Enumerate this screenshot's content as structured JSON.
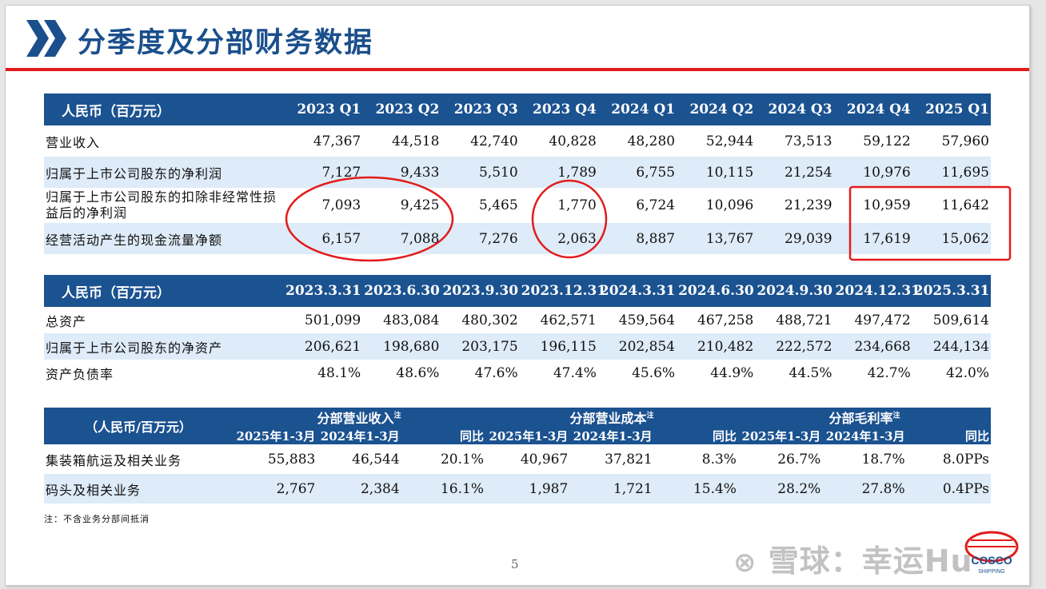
{
  "title": "分季度及分部财务数据",
  "table1": {
    "header": [
      "人民币（百万元）",
      "2023 Q1",
      "2023 Q2",
      "2023 Q3",
      "2023 Q4",
      "2024 Q1",
      "2024 Q2",
      "2024 Q3",
      "2024 Q4",
      "2025 Q1"
    ],
    "rows": [
      {
        "label": "营业收入",
        "values": [
          "47,367",
          "44,518",
          "42,740",
          "40,828",
          "48,280",
          "52,944",
          "73,513",
          "59,122",
          "57,960"
        ]
      },
      {
        "label": "归属于上市公司股东的净利润",
        "values": [
          "7,127",
          "9,433",
          "5,510",
          "1,789",
          "6,755",
          "10,115",
          "21,254",
          "10,976",
          "11,695"
        ]
      },
      {
        "label": "归属于上市公司股东的扣除非经常性损益后的净利润",
        "values": [
          "7,093",
          "9,425",
          "5,465",
          "1,770",
          "6,724",
          "10,096",
          "21,239",
          "10,959",
          "11,642"
        ]
      },
      {
        "label": "经营活动产生的现金流量净额",
        "values": [
          "6,157",
          "7,088",
          "7,276",
          "2,063",
          "8,887",
          "13,767",
          "29,039",
          "17,619",
          "15,062"
        ]
      }
    ]
  },
  "table2": {
    "header": [
      "人民币（百万元）",
      "2023.3.31",
      "2023.6.30",
      "2023.9.30",
      "2023.12.31",
      "2024.3.31",
      "2024.6.30",
      "2024.9.30",
      "2024.12.31",
      "2025.3.31"
    ],
    "rows": [
      {
        "label": "总资产",
        "values": [
          "501,099",
          "483,084",
          "480,302",
          "462,571",
          "459,564",
          "467,258",
          "488,721",
          "497,472",
          "509,614"
        ]
      },
      {
        "label": "归属于上市公司股东的净资产",
        "values": [
          "206,621",
          "198,680",
          "203,175",
          "196,115",
          "202,854",
          "210,482",
          "222,572",
          "234,668",
          "244,134"
        ]
      },
      {
        "label": "资产负债率",
        "values": [
          "48.1%",
          "48.6%",
          "47.6%",
          "47.4%",
          "45.6%",
          "44.9%",
          "44.5%",
          "42.7%",
          "42.0%"
        ]
      }
    ]
  },
  "table3": {
    "corner": "（人民币/百万元）",
    "groups": [
      "分部营业收入",
      "分部营业成本",
      "分部毛利率"
    ],
    "note_mark": "注",
    "subheader": [
      "2025年1-3月",
      "2024年1-3月",
      "同比",
      "2025年1-3月",
      "2024年1-3月",
      "同比",
      "2025年1-3月",
      "2024年1-3月",
      "同比"
    ],
    "rows": [
      {
        "label": "集装箱航运及相关业务",
        "values": [
          "55,883",
          "46,544",
          "20.1%",
          "40,967",
          "37,821",
          "8.3%",
          "26.7%",
          "18.7%",
          "8.0PPs"
        ]
      },
      {
        "label": "码头及相关业务",
        "values": [
          "2,767",
          "2,384",
          "16.1%",
          "1,987",
          "1,721",
          "15.4%",
          "28.2%",
          "27.8%",
          "0.4PPs"
        ]
      }
    ]
  },
  "note": "注：不含业务分部间抵消",
  "page_number": "5",
  "watermark": "雪球：幸运Hu",
  "logo_text": {
    "top": "COSCO",
    "bottom": "SHIPPING"
  },
  "colors": {
    "header_blue": "#1b5290",
    "accent_red": "#e31b1b",
    "row_alt": "#deebf8"
  }
}
